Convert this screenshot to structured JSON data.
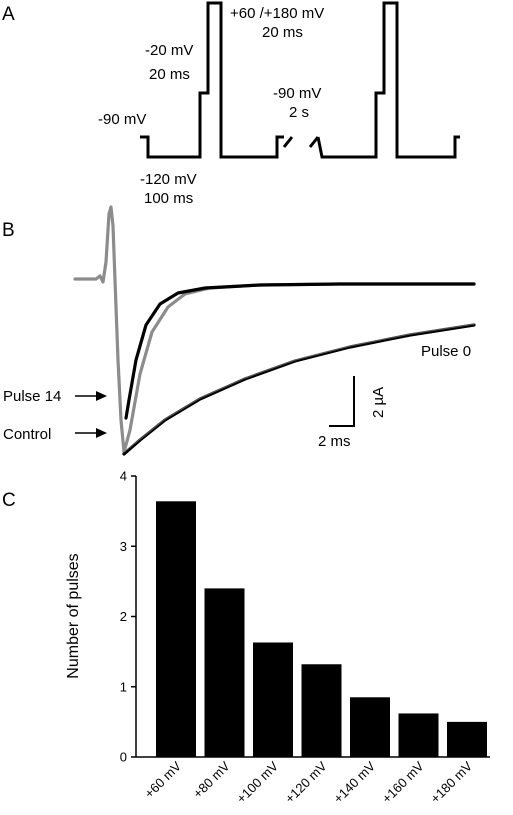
{
  "panels": {
    "a": "A",
    "b": "B",
    "c": "C"
  },
  "protocol": {
    "hold_label": "-90 mV",
    "hyper_v": "-120 mV",
    "hyper_t": "100 ms",
    "pre_v": "-20 mV",
    "pre_t": "20 ms",
    "pulse_v": "+60 /+180 mV",
    "pulse_t": "20 ms",
    "interval_v": "-90 mV",
    "interval_t": "2 s"
  },
  "traces": {
    "pulse0": "Pulse 0",
    "pulse14": "Pulse 14",
    "control": "Control",
    "scale_y": "2 µA",
    "scale_x": "2 ms",
    "color_control": "#8c8c8c",
    "color_pulse": "#000000"
  },
  "chart_data": {
    "type": "bar",
    "ylabel": "Number of pulses",
    "xlabel": "",
    "ylim": [
      0,
      4
    ],
    "yticks": [
      "0",
      "1",
      "2",
      "3",
      "4"
    ],
    "categories": [
      "+60 mV",
      "+80 mV",
      "+100 mV",
      "+120 mV",
      "+140 mV",
      "+160 mV",
      "+180 mV"
    ],
    "values": [
      3.64,
      2.4,
      1.63,
      1.32,
      0.85,
      0.62,
      0.5
    ],
    "bar_color": "#000000",
    "grid": false
  }
}
